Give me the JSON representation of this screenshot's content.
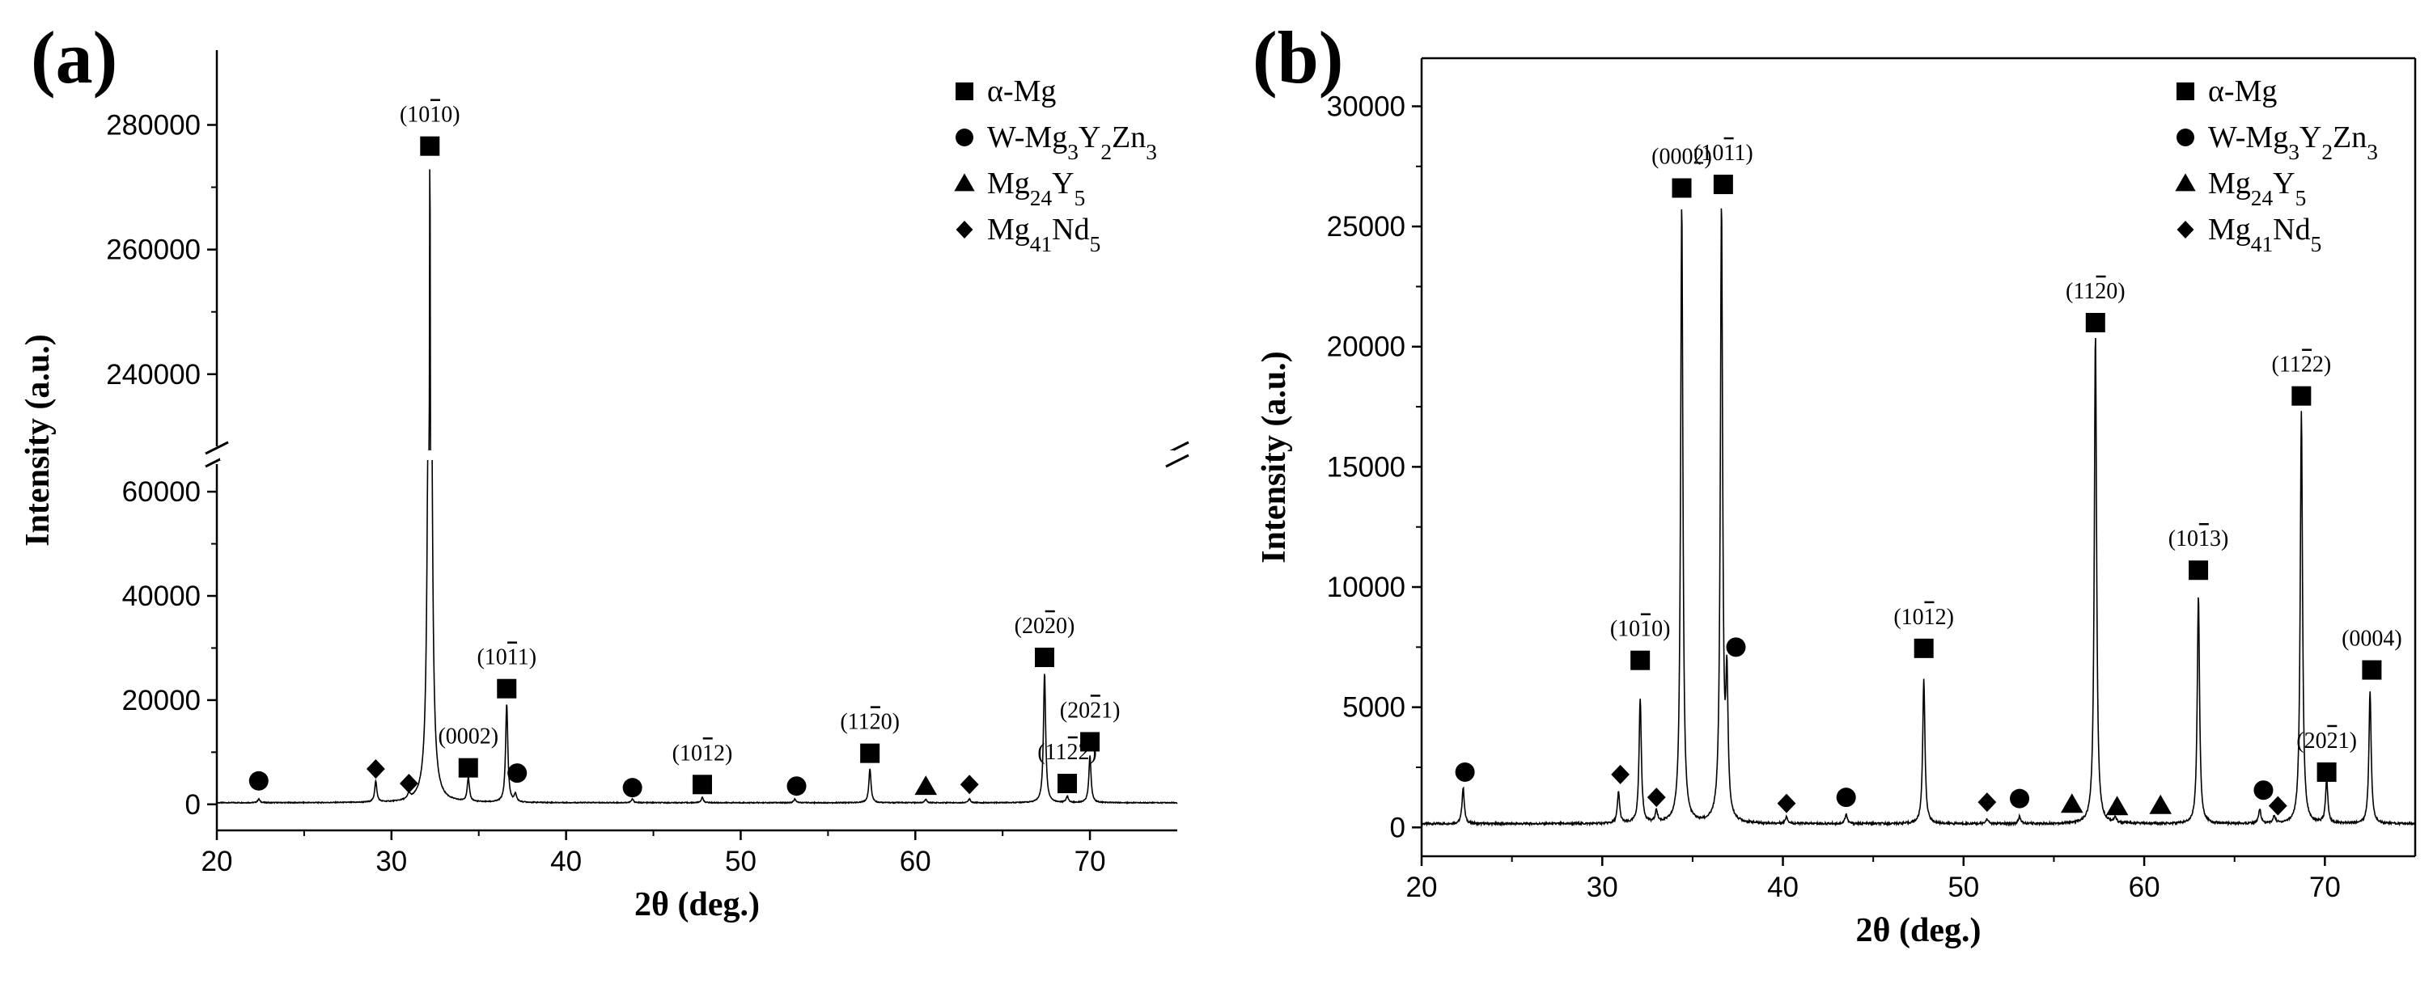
{
  "chart_data": [
    {
      "type": "line",
      "panel_label": "(a)",
      "title": "",
      "xlabel": "2θ (deg.)",
      "ylabel": "Intensity (a.u.)",
      "xlim": [
        20,
        75
      ],
      "x_ticks": [
        "20",
        "30",
        "40",
        "50",
        "60",
        "70"
      ],
      "axis_break": {
        "lower_range": [
          -5000,
          67000
        ],
        "upper_range": [
          227000,
          292000
        ]
      },
      "y_ticks": [
        "0",
        "20000",
        "40000",
        "60000",
        "240000",
        "260000",
        "280000"
      ],
      "legend": [
        {
          "marker": "square",
          "label": "α-Mg"
        },
        {
          "marker": "circle",
          "label": "W-Mg3Y2Zn3"
        },
        {
          "marker": "triangle",
          "label": "Mg24Y5"
        },
        {
          "marker": "diamond",
          "label": "Mg41Nd5"
        }
      ],
      "series": [
        {
          "name": "XRD pattern (a)",
          "baseline": 300,
          "peaks": [
            {
              "x": 22.4,
              "y": 700
            },
            {
              "x": 29.1,
              "y": 4000
            },
            {
              "x": 31.0,
              "y": 1200
            },
            {
              "x": 32.2,
              "y": 276000
            },
            {
              "x": 34.4,
              "y": 4500
            },
            {
              "x": 36.6,
              "y": 19000
            },
            {
              "x": 37.1,
              "y": 1500
            },
            {
              "x": 43.8,
              "y": 700
            },
            {
              "x": 47.8,
              "y": 1000
            },
            {
              "x": 53.1,
              "y": 700
            },
            {
              "x": 57.4,
              "y": 6500
            },
            {
              "x": 60.6,
              "y": 600
            },
            {
              "x": 63.1,
              "y": 700
            },
            {
              "x": 67.4,
              "y": 25000
            },
            {
              "x": 68.7,
              "y": 1200
            },
            {
              "x": 70.0,
              "y": 9000
            }
          ]
        }
      ],
      "markers": [
        {
          "shape": "square",
          "x": 32.2,
          "y": 276600,
          "label": "(1010)"
        },
        {
          "shape": "square",
          "x": 36.6,
          "y": 22200,
          "label": "(1011)"
        },
        {
          "shape": "square",
          "x": 34.4,
          "y": 7000,
          "label": "(0002)"
        },
        {
          "shape": "square",
          "x": 47.8,
          "y": 3800,
          "label": "(1012)"
        },
        {
          "shape": "square",
          "x": 57.4,
          "y": 9800,
          "label": "(1120)"
        },
        {
          "shape": "square",
          "x": 67.4,
          "y": 28200,
          "label": "(2020)"
        },
        {
          "shape": "square",
          "x": 70.0,
          "y": 12000,
          "label": "(2021)"
        },
        {
          "shape": "square",
          "x": 68.7,
          "y": 4000,
          "label": "(1122)"
        },
        {
          "shape": "circle",
          "x": 22.4,
          "y": 4500,
          "label": ""
        },
        {
          "shape": "circle",
          "x": 37.2,
          "y": 6000,
          "label": ""
        },
        {
          "shape": "circle",
          "x": 43.8,
          "y": 3200,
          "label": ""
        },
        {
          "shape": "circle",
          "x": 53.2,
          "y": 3500,
          "label": ""
        },
        {
          "shape": "triangle",
          "x": 60.6,
          "y": 3400,
          "label": ""
        },
        {
          "shape": "diamond",
          "x": 29.1,
          "y": 6800,
          "label": ""
        },
        {
          "shape": "diamond",
          "x": 31.0,
          "y": 4000,
          "label": ""
        },
        {
          "shape": "diamond",
          "x": 63.1,
          "y": 3800,
          "label": ""
        }
      ]
    },
    {
      "type": "line",
      "panel_label": "(b)",
      "title": "",
      "xlabel": "2θ (deg.)",
      "ylabel": "Intensity (a.u.)",
      "xlim": [
        20,
        75
      ],
      "ylim": [
        -1200,
        32000
      ],
      "x_ticks": [
        "20",
        "30",
        "40",
        "50",
        "60",
        "70"
      ],
      "y_ticks": [
        "0",
        "5000",
        "10000",
        "15000",
        "20000",
        "25000",
        "30000"
      ],
      "legend": [
        {
          "marker": "square",
          "label": "α-Mg"
        },
        {
          "marker": "circle",
          "label": "W-Mg3Y2Zn3"
        },
        {
          "marker": "triangle",
          "label": "Mg24Y5"
        },
        {
          "marker": "diamond",
          "label": "Mg41Nd5"
        }
      ],
      "series": [
        {
          "name": "XRD pattern (b)",
          "baseline": 150,
          "peaks": [
            {
              "x": 22.3,
              "y": 1500
            },
            {
              "x": 30.9,
              "y": 1300
            },
            {
              "x": 32.1,
              "y": 5200
            },
            {
              "x": 33.0,
              "y": 500
            },
            {
              "x": 34.4,
              "y": 25800
            },
            {
              "x": 36.6,
              "y": 25600
            },
            {
              "x": 36.9,
              "y": 5500
            },
            {
              "x": 40.2,
              "y": 300
            },
            {
              "x": 43.5,
              "y": 400
            },
            {
              "x": 47.8,
              "y": 6000
            },
            {
              "x": 51.3,
              "y": 200
            },
            {
              "x": 53.1,
              "y": 300
            },
            {
              "x": 57.3,
              "y": 20500
            },
            {
              "x": 58.4,
              "y": 200
            },
            {
              "x": 63.0,
              "y": 9500
            },
            {
              "x": 66.4,
              "y": 600
            },
            {
              "x": 67.2,
              "y": 300
            },
            {
              "x": 68.7,
              "y": 17200
            },
            {
              "x": 70.1,
              "y": 1800
            },
            {
              "x": 72.5,
              "y": 5500
            }
          ]
        }
      ],
      "markers": [
        {
          "shape": "square",
          "x": 32.1,
          "y": 6950,
          "label": "(1010)"
        },
        {
          "shape": "square",
          "x": 34.4,
          "y": 26600,
          "label": "(0002)"
        },
        {
          "shape": "square",
          "x": 36.7,
          "y": 26750,
          "label": "(1011)"
        },
        {
          "shape": "square",
          "x": 47.8,
          "y": 7450,
          "label": "(1012)"
        },
        {
          "shape": "square",
          "x": 57.3,
          "y": 21000,
          "label": "(1120)"
        },
        {
          "shape": "square",
          "x": 63.0,
          "y": 10700,
          "label": "(1013)"
        },
        {
          "shape": "square",
          "x": 68.7,
          "y": 17950,
          "label": "(1122)"
        },
        {
          "shape": "square",
          "x": 70.1,
          "y": 2300,
          "label": "(2021)"
        },
        {
          "shape": "square",
          "x": 72.6,
          "y": 6550,
          "label": "(0004)"
        },
        {
          "shape": "circle",
          "x": 22.4,
          "y": 2300,
          "label": ""
        },
        {
          "shape": "circle",
          "x": 37.4,
          "y": 7500,
          "label": ""
        },
        {
          "shape": "circle",
          "x": 43.5,
          "y": 1250,
          "label": ""
        },
        {
          "shape": "circle",
          "x": 53.1,
          "y": 1200,
          "label": ""
        },
        {
          "shape": "circle",
          "x": 66.6,
          "y": 1550,
          "label": ""
        },
        {
          "shape": "triangle",
          "x": 56.0,
          "y": 950,
          "label": ""
        },
        {
          "shape": "triangle",
          "x": 58.5,
          "y": 850,
          "label": ""
        },
        {
          "shape": "triangle",
          "x": 60.9,
          "y": 900,
          "label": ""
        },
        {
          "shape": "diamond",
          "x": 31.0,
          "y": 2200,
          "label": ""
        },
        {
          "shape": "diamond",
          "x": 33.0,
          "y": 1250,
          "label": ""
        },
        {
          "shape": "diamond",
          "x": 40.2,
          "y": 1000,
          "label": ""
        },
        {
          "shape": "diamond",
          "x": 51.3,
          "y": 1050,
          "label": ""
        },
        {
          "shape": "diamond",
          "x": 67.4,
          "y": 900,
          "label": ""
        }
      ]
    }
  ]
}
